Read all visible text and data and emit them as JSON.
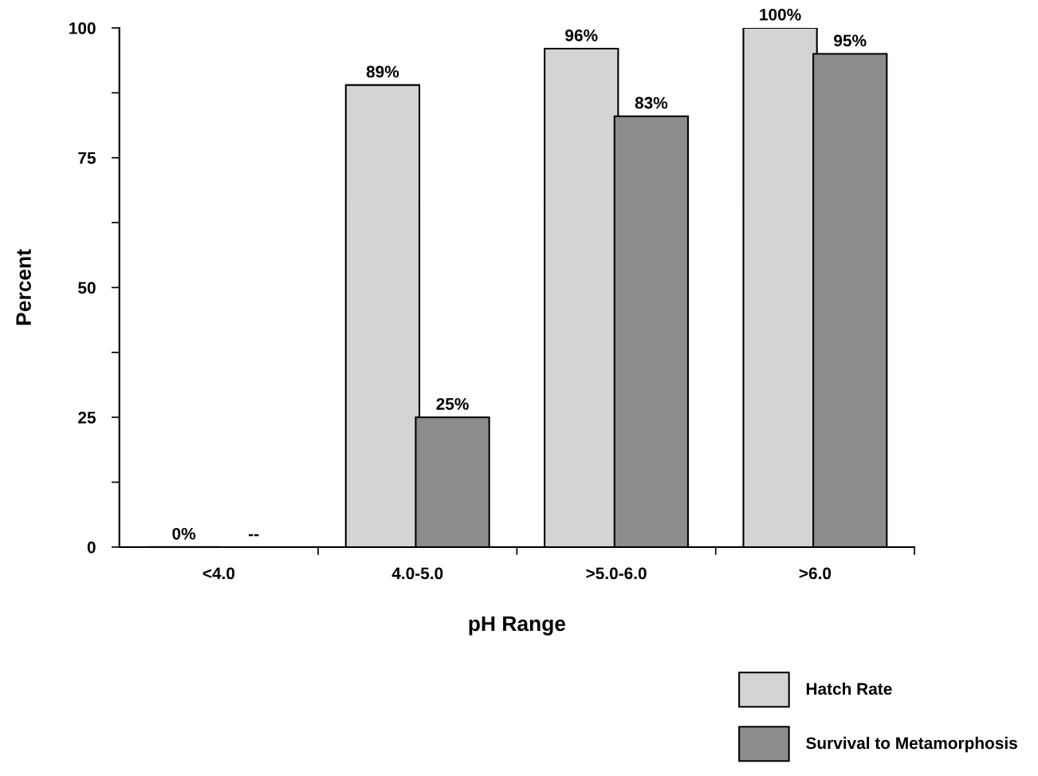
{
  "chart_data": {
    "type": "bar",
    "xlabel": "pH Range",
    "ylabel": "Percent",
    "categories": [
      "<4.0",
      "4.0-5.0",
      ">5.0-6.0",
      ">6.0"
    ],
    "series": [
      {
        "name": "Hatch Rate",
        "color": "#d4d4d4",
        "values": [
          0,
          89,
          96,
          100
        ],
        "value_labels": [
          "0%",
          "89%",
          "96%",
          "100%"
        ]
      },
      {
        "name": "Survival to Metamorphosis",
        "color": "#8c8c8c",
        "values": [
          null,
          25,
          83,
          95
        ],
        "value_labels": [
          "--",
          "25%",
          "83%",
          "95%"
        ]
      }
    ],
    "ylim": [
      0,
      100
    ],
    "yticks": [
      0,
      {
        "value": 12.5,
        "label": null
      },
      25,
      {
        "value": 37.5,
        "label": null
      },
      50,
      {
        "value": 62.5,
        "label": null
      },
      75,
      {
        "value": 87.5,
        "label": null
      },
      100
    ],
    "grid": false,
    "legend": "bottom right"
  }
}
